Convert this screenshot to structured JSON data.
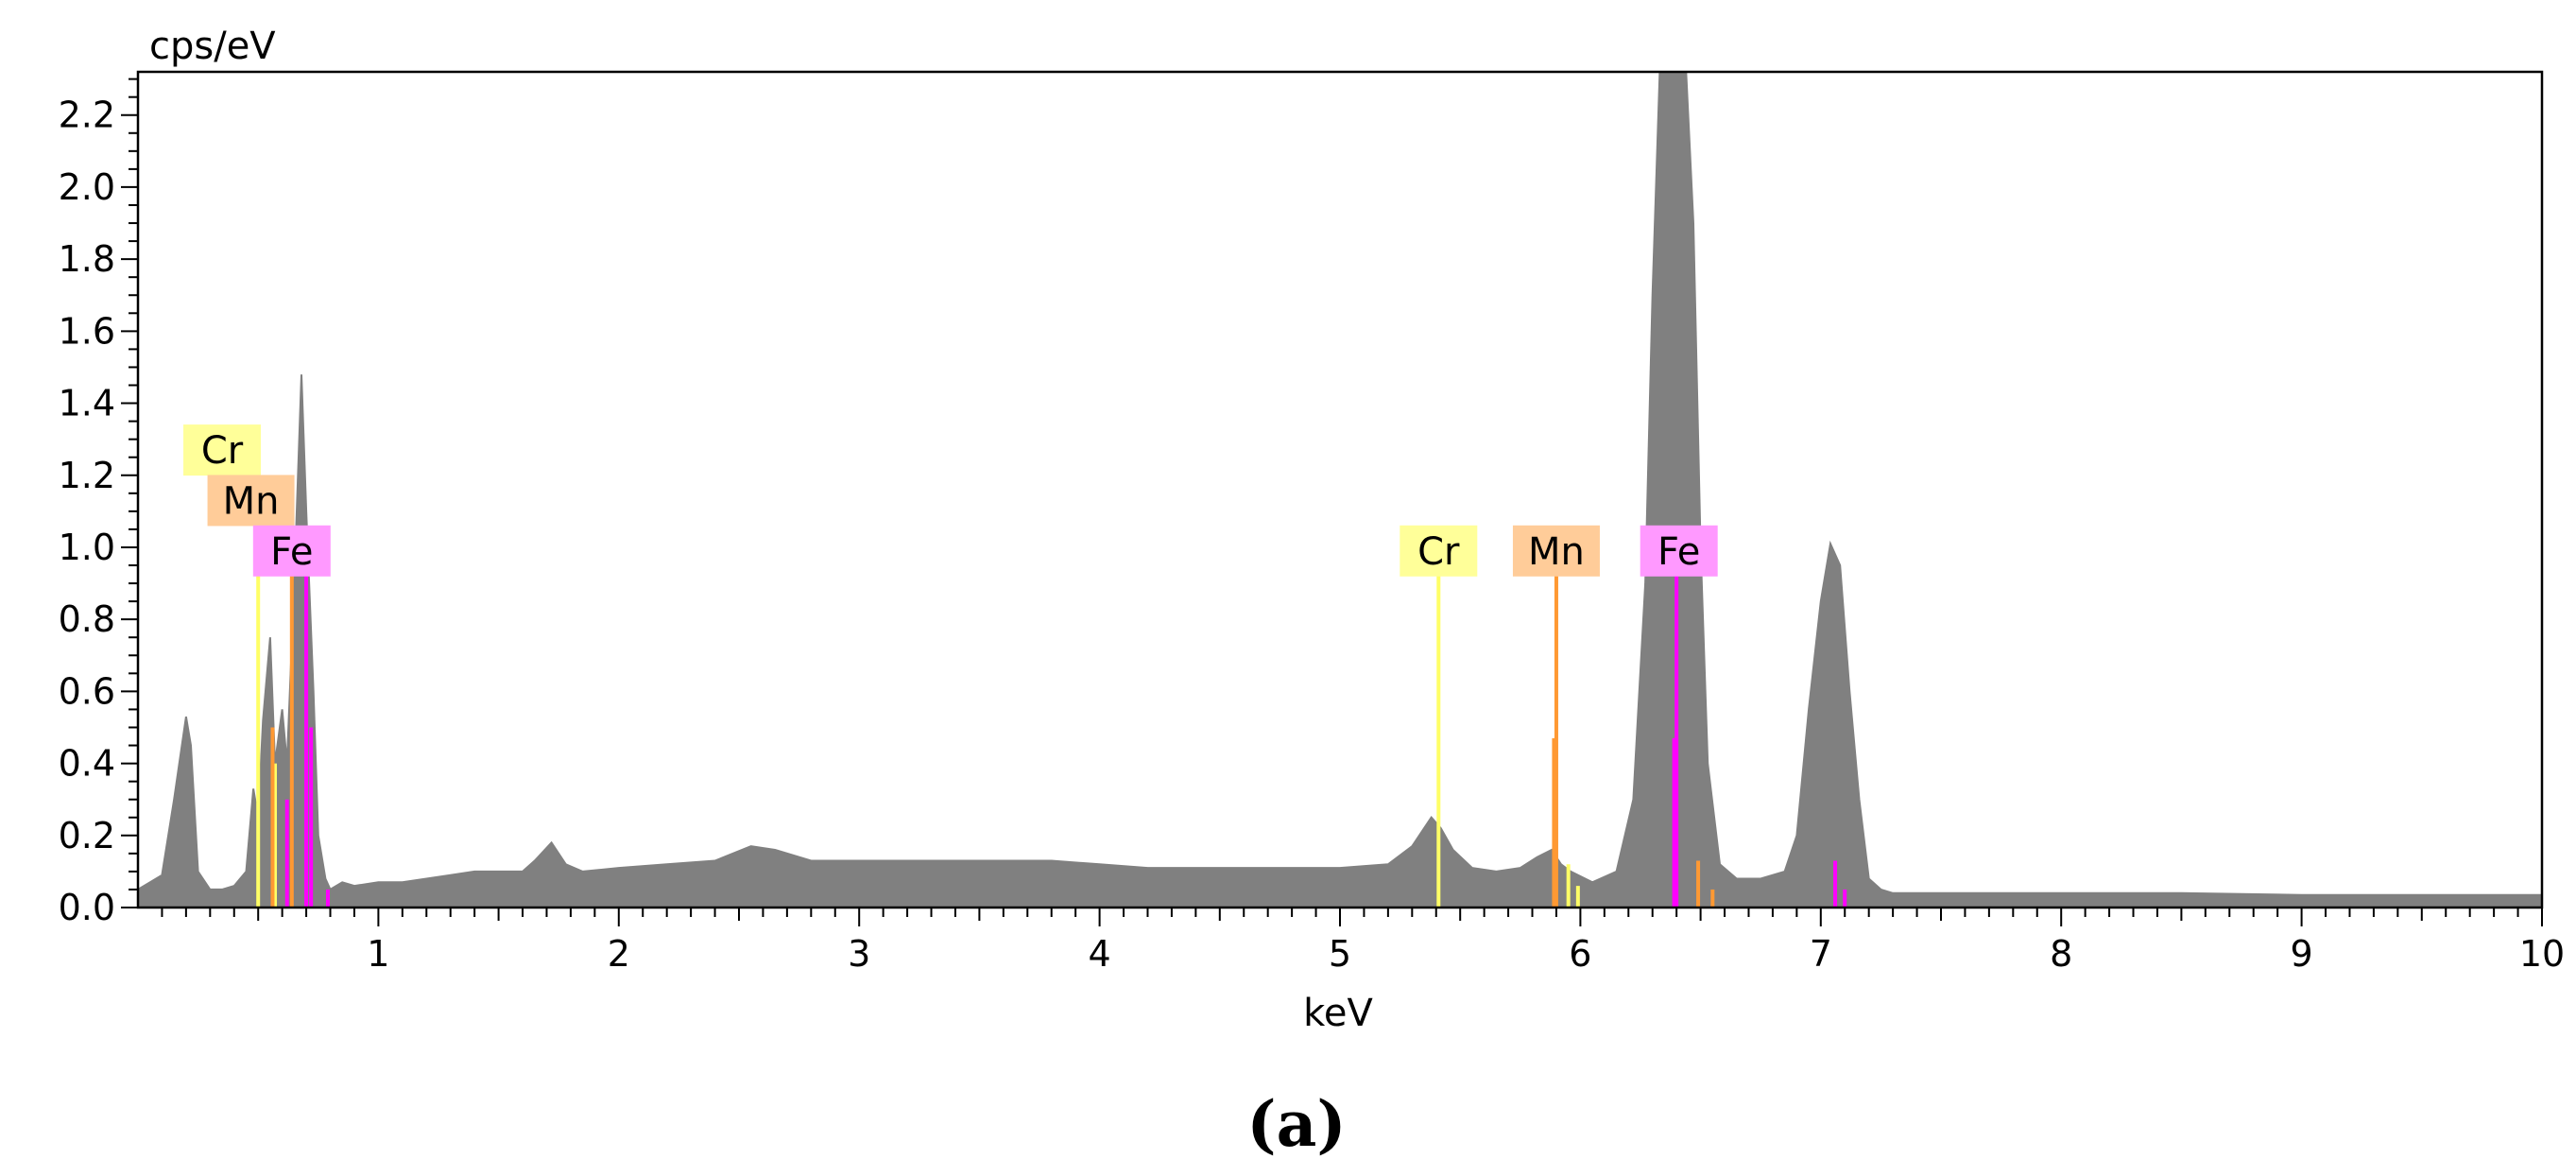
{
  "chart_data": {
    "type": "area",
    "ylabel": "cps/eV",
    "xlabel": "keV",
    "xlim": [
      0.0,
      10.0
    ],
    "ylim": [
      0.0,
      2.32
    ],
    "x_major_ticks": [
      1,
      2,
      3,
      4,
      5,
      6,
      7,
      8,
      9,
      10
    ],
    "x_tick_labels": [
      "1",
      "2",
      "3",
      "4",
      "5",
      "6",
      "7",
      "8",
      "9",
      "10"
    ],
    "y_major_ticks": [
      0.0,
      0.2,
      0.4,
      0.6,
      0.8,
      1.0,
      1.2,
      1.4,
      1.6,
      1.8,
      2.0,
      2.2
    ],
    "y_tick_labels": [
      "0.0",
      "0.2",
      "0.4",
      "0.6",
      "0.8",
      "1.0",
      "1.2",
      "1.4",
      "1.6",
      "1.8",
      "2.0",
      "2.2"
    ],
    "spectrum": {
      "name": "",
      "color": "#808080",
      "x": [
        0.0,
        0.05,
        0.1,
        0.15,
        0.2,
        0.22,
        0.25,
        0.3,
        0.35,
        0.4,
        0.45,
        0.48,
        0.5,
        0.52,
        0.55,
        0.57,
        0.6,
        0.62,
        0.65,
        0.68,
        0.7,
        0.73,
        0.75,
        0.78,
        0.8,
        0.85,
        0.9,
        1.0,
        1.1,
        1.2,
        1.3,
        1.4,
        1.5,
        1.6,
        1.65,
        1.72,
        1.78,
        1.85,
        2.0,
        2.2,
        2.4,
        2.55,
        2.65,
        2.8,
        3.0,
        3.2,
        3.5,
        3.8,
        4.0,
        4.2,
        4.5,
        4.8,
        5.0,
        5.2,
        5.3,
        5.38,
        5.42,
        5.47,
        5.55,
        5.65,
        5.75,
        5.82,
        5.88,
        5.92,
        5.96,
        6.05,
        6.15,
        6.22,
        6.27,
        6.3,
        6.33,
        6.37,
        6.4,
        6.44,
        6.47,
        6.5,
        6.53,
        6.58,
        6.65,
        6.75,
        6.85,
        6.9,
        6.95,
        7.0,
        7.04,
        7.08,
        7.12,
        7.16,
        7.2,
        7.25,
        7.3,
        7.5,
        8.0,
        8.5,
        9.0,
        9.5,
        10.0
      ],
      "y": [
        0.05,
        0.07,
        0.09,
        0.3,
        0.53,
        0.45,
        0.1,
        0.05,
        0.05,
        0.06,
        0.1,
        0.33,
        0.25,
        0.52,
        0.75,
        0.4,
        0.55,
        0.4,
        0.9,
        1.48,
        1.1,
        0.6,
        0.2,
        0.08,
        0.05,
        0.07,
        0.06,
        0.07,
        0.07,
        0.08,
        0.09,
        0.1,
        0.1,
        0.1,
        0.13,
        0.18,
        0.12,
        0.1,
        0.11,
        0.12,
        0.13,
        0.17,
        0.16,
        0.13,
        0.13,
        0.13,
        0.13,
        0.13,
        0.12,
        0.11,
        0.11,
        0.11,
        0.11,
        0.12,
        0.17,
        0.25,
        0.22,
        0.16,
        0.11,
        0.1,
        0.11,
        0.14,
        0.16,
        0.12,
        0.1,
        0.07,
        0.1,
        0.3,
        0.9,
        1.7,
        2.32,
        2.32,
        2.32,
        2.32,
        1.9,
        1.0,
        0.4,
        0.12,
        0.08,
        0.08,
        0.1,
        0.2,
        0.55,
        0.85,
        1.01,
        0.95,
        0.6,
        0.3,
        0.08,
        0.05,
        0.04,
        0.04,
        0.04,
        0.04,
        0.035,
        0.035,
        0.035
      ]
    },
    "element_lines": [
      {
        "element": "Cr",
        "color": "#ffff66",
        "positions": [
          0.5,
          0.57,
          5.41,
          5.95,
          5.99
        ],
        "heights": [
          0.93,
          0.4,
          0.93,
          0.12,
          0.06
        ]
      },
      {
        "element": "Mn",
        "color": "#ff9933",
        "positions": [
          0.56,
          0.64,
          5.9,
          5.89,
          6.49,
          6.55
        ],
        "heights": [
          0.5,
          0.93,
          0.93,
          0.47,
          0.13,
          0.05
        ]
      },
      {
        "element": "Fe",
        "color": "#ff00ff",
        "positions": [
          0.62,
          0.7,
          0.72,
          0.79,
          6.4,
          6.39,
          7.06,
          7.1
        ],
        "heights": [
          0.3,
          0.93,
          0.5,
          0.05,
          0.93,
          0.47,
          0.13,
          0.05
        ]
      }
    ],
    "element_labels": [
      {
        "text": "Cr",
        "x": 0.35,
        "y": 1.27,
        "bg": "#ffff99"
      },
      {
        "text": "Mn",
        "x": 0.47,
        "y": 1.13,
        "bg": "#ffcc99"
      },
      {
        "text": "Fe",
        "x": 0.64,
        "y": 0.99,
        "bg": "#ff99ff"
      },
      {
        "text": "Cr",
        "x": 5.41,
        "y": 0.99,
        "bg": "#ffff99"
      },
      {
        "text": "Mn",
        "x": 5.9,
        "y": 0.99,
        "bg": "#ffcc99"
      },
      {
        "text": "Fe",
        "x": 6.41,
        "y": 0.99,
        "bg": "#ff99ff"
      }
    ],
    "grid": false,
    "legend": "none"
  },
  "caption": "(a)"
}
